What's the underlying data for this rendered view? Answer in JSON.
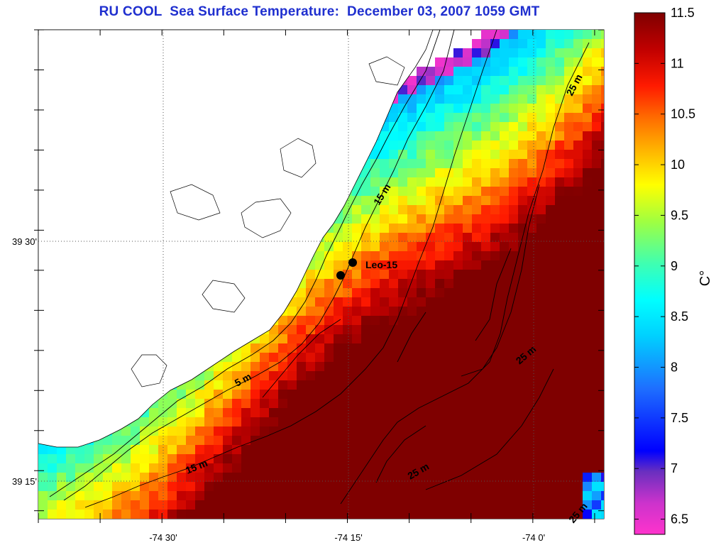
{
  "map": {
    "title": "RU COOL  Sea Surface Temperature:  December 03, 2007 1059 GMT",
    "lon_ticks": [
      "-74 30'",
      "-74 15'",
      "-74 0'"
    ],
    "lat_ticks": [
      "39 30'",
      "39 15'"
    ],
    "station_label": "Leo-15",
    "contour_labels": [
      "5 m",
      "15 m",
      "15 m",
      "25 m",
      "25 m",
      "25 m",
      "25 m"
    ]
  },
  "colorbar": {
    "unit_label": "C°",
    "min": 6.35,
    "max": 11.5,
    "ticks": [
      "6.5",
      "7",
      "7.5",
      "8",
      "8.5",
      "9",
      "9.5",
      "10",
      "10.5",
      "11",
      "11.5"
    ],
    "colors": [
      "#ff33cc",
      "#7f3fbf",
      "#1a1aff",
      "#1a9cff",
      "#00ffff",
      "#33ff99",
      "#ffff00",
      "#ff9900",
      "#ff1a00",
      "#b30000",
      "#7f0000"
    ]
  }
}
